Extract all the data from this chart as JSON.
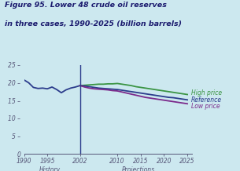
{
  "title_line1": "Figure 95. Lower 48 crude oil reserves",
  "title_line2": "in three cases, 1990-2025 (billion barrels)",
  "background_color": "#cce8ef",
  "xlim": [
    1990,
    2026
  ],
  "ylim": [
    0,
    25
  ],
  "yticks": [
    0,
    5,
    10,
    15,
    20,
    25
  ],
  "xticks": [
    1990,
    1995,
    2002,
    2010,
    2015,
    2020,
    2025
  ],
  "vline_x": 2002,
  "history_years": [
    1990,
    1991,
    1992,
    1993,
    1994,
    1995,
    1996,
    1997,
    1998,
    1999,
    2000,
    2001,
    2002
  ],
  "history_values": [
    20.8,
    20.0,
    18.7,
    18.4,
    18.5,
    18.3,
    18.8,
    18.1,
    17.2,
    18.0,
    18.5,
    18.8,
    19.2
  ],
  "proj_years": [
    2002,
    2003,
    2004,
    2005,
    2006,
    2007,
    2008,
    2009,
    2010,
    2011,
    2012,
    2013,
    2014,
    2015,
    2016,
    2017,
    2018,
    2019,
    2020,
    2021,
    2022,
    2023,
    2024,
    2025
  ],
  "high_price": [
    19.2,
    19.3,
    19.4,
    19.5,
    19.6,
    19.6,
    19.7,
    19.7,
    19.8,
    19.6,
    19.4,
    19.2,
    18.9,
    18.7,
    18.5,
    18.3,
    18.1,
    17.9,
    17.7,
    17.5,
    17.3,
    17.1,
    16.9,
    16.7
  ],
  "reference": [
    19.2,
    19.1,
    18.9,
    18.7,
    18.5,
    18.4,
    18.3,
    18.2,
    18.1,
    17.9,
    17.7,
    17.5,
    17.3,
    17.1,
    16.9,
    16.7,
    16.5,
    16.3,
    16.1,
    15.9,
    15.8,
    15.6,
    15.4,
    15.2
  ],
  "low_price": [
    19.2,
    18.8,
    18.5,
    18.3,
    18.2,
    18.1,
    18.0,
    17.8,
    17.7,
    17.4,
    17.1,
    16.8,
    16.5,
    16.2,
    15.9,
    15.7,
    15.5,
    15.3,
    15.1,
    14.9,
    14.7,
    14.5,
    14.3,
    14.1
  ],
  "line_color_history": "#2b3c8c",
  "line_color_high": "#3a9443",
  "line_color_ref": "#2b3c8c",
  "line_color_low": "#7b2a8b",
  "label_high": "High price",
  "label_ref": "Reference",
  "label_low": "Low price",
  "label_color_high": "#3a9443",
  "label_color_ref": "#2b3c8c",
  "label_color_low": "#7b2a8b",
  "title_color": "#1a1a6e",
  "axis_color": "#555577"
}
